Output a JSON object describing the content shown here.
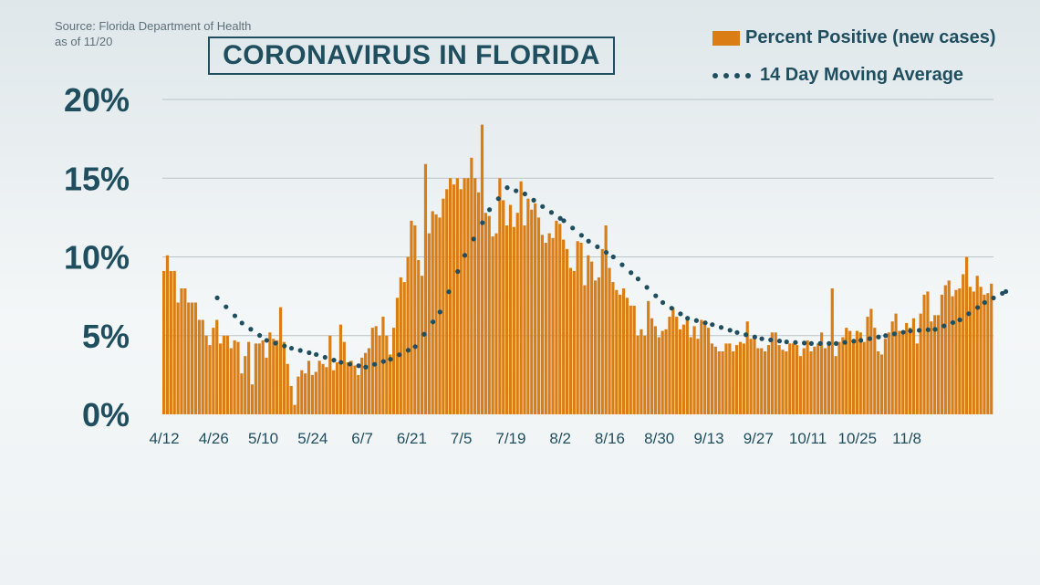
{
  "header": {
    "source_line1": "Source: Florida Department of Health",
    "source_line2": "as of 11/20",
    "title": "CORONAVIRUS IN FLORIDA"
  },
  "legend": {
    "bars_label": "Percent Positive (new cases)",
    "line_label": "14 Day Moving Average"
  },
  "colors": {
    "bar": "#d97d14",
    "line": "#1f4e5f",
    "grid": "#b9c3c8",
    "text": "#1f4e5f"
  },
  "chart_data": {
    "type": "bar",
    "title": "CORONAVIRUS IN FLORIDA",
    "xlabel": "",
    "ylabel": "",
    "ylim": [
      0,
      20
    ],
    "y_ticks": [
      0,
      5,
      10,
      15,
      20
    ],
    "y_tick_labels": [
      "0%",
      "5%",
      "10%",
      "15%",
      "20%"
    ],
    "x_tick_labels": [
      "4/12",
      "4/26",
      "5/10",
      "5/24",
      "6/7",
      "6/21",
      "7/5",
      "7/19",
      "8/2",
      "8/16",
      "8/30",
      "9/13",
      "9/27",
      "10/11",
      "10/25",
      "11/8"
    ],
    "x_start": "4/12",
    "x_end": "11/19",
    "grid": true,
    "legend_position": "top-right",
    "series": [
      {
        "name": "Percent Positive (new cases)",
        "type": "bar",
        "values": [
          9.1,
          10.1,
          9.1,
          9.1,
          7.1,
          8.0,
          8.0,
          7.1,
          7.1,
          7.1,
          6.0,
          6.0,
          5.0,
          4.4,
          5.5,
          6.0,
          4.5,
          5.0,
          5.0,
          4.2,
          4.7,
          4.6,
          2.6,
          3.7,
          4.6,
          1.9,
          4.5,
          4.5,
          4.7,
          3.6,
          5.2,
          4.8,
          4.7,
          6.8,
          4.6,
          3.2,
          1.8,
          0.6,
          2.4,
          2.8,
          2.6,
          3.4,
          2.5,
          2.7,
          3.4,
          3.2,
          3.0,
          5.0,
          2.8,
          3.3,
          5.7,
          4.6,
          3.3,
          3.4,
          3.1,
          2.5,
          3.6,
          3.9,
          4.2,
          5.5,
          5.6,
          5.0,
          6.2,
          5.0,
          3.8,
          5.5,
          7.4,
          8.7,
          8.4,
          10.0,
          12.3,
          12.0,
          9.8,
          8.8,
          15.9,
          11.5,
          12.9,
          12.7,
          12.5,
          13.7,
          14.3,
          15.0,
          14.6,
          15.0,
          14.3,
          15.0,
          15.0,
          16.3,
          15.0,
          14.1,
          18.4,
          12.8,
          12.6,
          11.3,
          11.5,
          15.0,
          13.6,
          12.0,
          13.3,
          11.9,
          12.8,
          14.8,
          12.0,
          13.7,
          13.0,
          13.4,
          12.5,
          11.4,
          10.9,
          11.5,
          11.2,
          12.3,
          12.1,
          11.1,
          10.5,
          9.3,
          9.1,
          11.0,
          10.9,
          8.2,
          10.1,
          9.7,
          8.5,
          8.7,
          10.5,
          12.0,
          9.3,
          8.4,
          7.9,
          7.6,
          8.0,
          7.4,
          6.9,
          6.9,
          5.0,
          5.4,
          5.0,
          7.2,
          6.1,
          5.6,
          4.9,
          5.3,
          5.4,
          6.2,
          6.8,
          6.2,
          5.4,
          5.7,
          6.0,
          4.9,
          5.6,
          4.8,
          6.0,
          5.7,
          5.5,
          4.5,
          4.3,
          4.0,
          4.0,
          4.5,
          4.5,
          4.0,
          4.4,
          4.6,
          4.5,
          5.9,
          4.8,
          4.9,
          4.2,
          4.2,
          4.0,
          4.4,
          5.2,
          5.2,
          4.4,
          4.1,
          4.0,
          4.5,
          4.5,
          4.4,
          3.7,
          4.2,
          4.7,
          4.0,
          4.3,
          4.5,
          5.2,
          4.2,
          4.5,
          8.0,
          3.7,
          4.6,
          4.9,
          5.5,
          5.3,
          4.5,
          5.3,
          5.2,
          4.6,
          6.2,
          6.7,
          5.5,
          4.0,
          3.8,
          4.8,
          5.2,
          5.9,
          6.4,
          5.3,
          5.3,
          5.8,
          5.5,
          6.1,
          4.5,
          6.4,
          7.6,
          7.8,
          5.9,
          6.3,
          6.3,
          7.6,
          8.2,
          8.5,
          7.5,
          7.9,
          8.0,
          8.9,
          10.0,
          8.1,
          7.8,
          8.8,
          8.1,
          7.6,
          7.7,
          8.3
        ]
      },
      {
        "name": "14 Day Moving Average",
        "type": "line",
        "points": [
          {
            "day": 15,
            "y": 7.4
          },
          {
            "day": 22,
            "y": 5.8
          },
          {
            "day": 29,
            "y": 4.7
          },
          {
            "day": 36,
            "y": 4.2
          },
          {
            "day": 43,
            "y": 3.8
          },
          {
            "day": 50,
            "y": 3.3
          },
          {
            "day": 57,
            "y": 3.0
          },
          {
            "day": 64,
            "y": 3.5
          },
          {
            "day": 71,
            "y": 4.3
          },
          {
            "day": 78,
            "y": 6.5
          },
          {
            "day": 85,
            "y": 10.1
          },
          {
            "day": 92,
            "y": 13.0
          },
          {
            "day": 97,
            "y": 14.4
          },
          {
            "day": 102,
            "y": 14.0
          },
          {
            "day": 107,
            "y": 13.2
          },
          {
            "day": 113,
            "y": 12.3
          },
          {
            "day": 120,
            "y": 11.0
          },
          {
            "day": 127,
            "y": 10.0
          },
          {
            "day": 134,
            "y": 8.6
          },
          {
            "day": 141,
            "y": 7.1
          },
          {
            "day": 148,
            "y": 6.1
          },
          {
            "day": 155,
            "y": 5.7
          },
          {
            "day": 162,
            "y": 5.2
          },
          {
            "day": 169,
            "y": 4.8
          },
          {
            "day": 176,
            "y": 4.6
          },
          {
            "day": 183,
            "y": 4.5
          },
          {
            "day": 190,
            "y": 4.5
          },
          {
            "day": 197,
            "y": 4.7
          },
          {
            "day": 204,
            "y": 5.0
          },
          {
            "day": 211,
            "y": 5.3
          },
          {
            "day": 218,
            "y": 5.4
          },
          {
            "day": 225,
            "y": 6.0
          },
          {
            "day": 232,
            "y": 7.1
          },
          {
            "day": 238,
            "y": 7.8
          }
        ]
      }
    ]
  }
}
